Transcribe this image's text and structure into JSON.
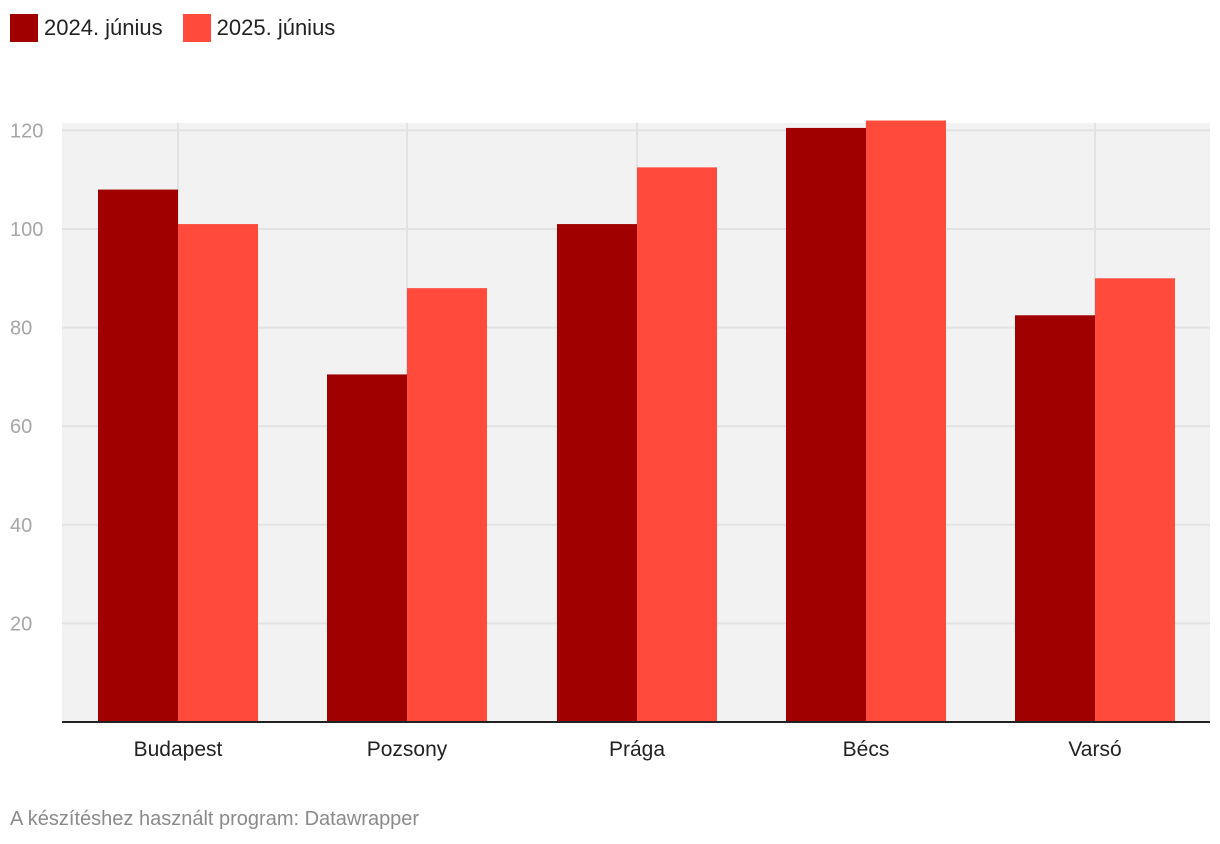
{
  "chart_data": {
    "type": "bar",
    "title": "",
    "xlabel": "",
    "ylabel": "",
    "categories": [
      "Budapest",
      "Pozsony",
      "Prága",
      "Bécs",
      "Varsó"
    ],
    "series": [
      {
        "name": "2024. június",
        "color": "#a00000",
        "values": [
          108,
          70.5,
          101,
          120.5,
          82.5
        ]
      },
      {
        "name": "2025. június",
        "color": "#ff4a3c",
        "values": [
          101,
          88,
          112.5,
          122,
          90
        ]
      }
    ],
    "yticks": [
      20,
      40,
      60,
      80,
      100,
      120
    ],
    "ylim": [
      0,
      122
    ],
    "grid": true,
    "legend_position": "top-left"
  },
  "footer": {
    "text": "A készítéshez használt program: Datawrapper"
  }
}
